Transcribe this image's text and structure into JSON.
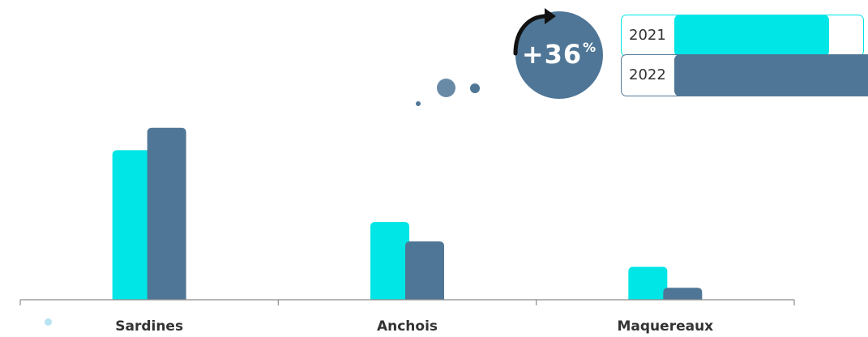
{
  "chart_data": {
    "type": "bar",
    "categories": [
      "Sardines",
      "Anchois",
      "Maquereaux"
    ],
    "series": [
      {
        "name": "2021",
        "values": [
          100,
          52,
          22
        ]
      },
      {
        "name": "2022",
        "values": [
          115,
          39,
          8
        ]
      }
    ],
    "ylim": [
      0,
      130
    ],
    "grid": false,
    "legend": "top-right"
  },
  "badge": {
    "sign_value": "+36",
    "unit": "%"
  },
  "colors": {
    "series_2021": "#00e5e5",
    "series_2022": "#4f7696",
    "axis": "#8c8c8c"
  },
  "icons": [
    "curved-arrow-icon",
    "decorative-dots"
  ]
}
